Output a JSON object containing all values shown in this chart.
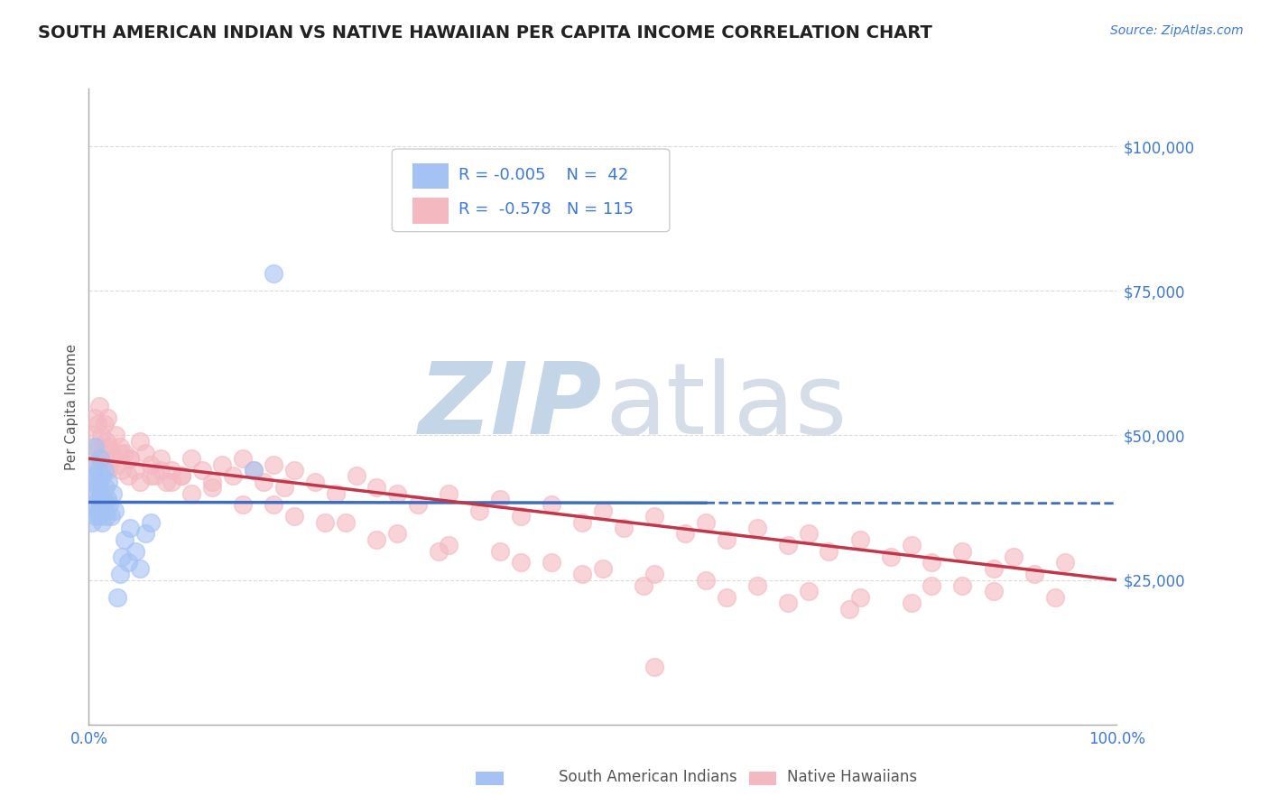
{
  "title": "SOUTH AMERICAN INDIAN VS NATIVE HAWAIIAN PER CAPITA INCOME CORRELATION CHART",
  "source_text": "Source: ZipAtlas.com",
  "ylabel": "Per Capita Income",
  "xlim": [
    0,
    1.0
  ],
  "ylim": [
    0,
    110000
  ],
  "xticks": [
    0.0,
    0.2,
    0.4,
    0.6,
    0.8,
    1.0
  ],
  "xtick_labels": [
    "0.0%",
    "",
    "",
    "",
    "",
    "100.0%"
  ],
  "yticks": [
    0,
    25000,
    50000,
    75000,
    100000
  ],
  "ytick_labels": [
    "",
    "$25,000",
    "$50,000",
    "$75,000",
    "$100,000"
  ],
  "legend_R1": "-0.005",
  "legend_N1": "42",
  "legend_R2": "-0.578",
  "legend_N2": "115",
  "color_blue": "#a4c2f4",
  "color_pink": "#f4b8c1",
  "trend_blue_color": "#3d6cc0",
  "trend_pink_color": "#c0364a",
  "background_color": "#ffffff",
  "grid_color": "#cccccc",
  "title_color": "#222222",
  "tick_color": "#3c78d8",
  "watermark_zip_color": "#c5d5e8",
  "watermark_atlas_color": "#d5dde8",
  "blue_scatter_x": [
    0.003,
    0.004,
    0.005,
    0.005,
    0.006,
    0.006,
    0.007,
    0.007,
    0.008,
    0.008,
    0.009,
    0.009,
    0.01,
    0.01,
    0.011,
    0.011,
    0.012,
    0.013,
    0.013,
    0.014,
    0.015,
    0.015,
    0.016,
    0.017,
    0.018,
    0.019,
    0.02,
    0.022,
    0.023,
    0.025,
    0.028,
    0.03,
    0.032,
    0.035,
    0.038,
    0.04,
    0.045,
    0.05,
    0.055,
    0.06,
    0.16,
    0.18
  ],
  "blue_scatter_y": [
    35000,
    42000,
    38000,
    45000,
    40000,
    48000,
    36000,
    43000,
    41000,
    37000,
    39000,
    44000,
    36000,
    42000,
    38000,
    46000,
    40000,
    35000,
    43000,
    39000,
    37000,
    44000,
    41000,
    36000,
    39000,
    42000,
    38000,
    36000,
    40000,
    37000,
    22000,
    26000,
    29000,
    32000,
    28000,
    34000,
    30000,
    27000,
    33000,
    35000,
    44000,
    78000
  ],
  "pink_scatter_x": [
    0.004,
    0.005,
    0.006,
    0.007,
    0.008,
    0.009,
    0.01,
    0.011,
    0.012,
    0.013,
    0.014,
    0.015,
    0.016,
    0.017,
    0.018,
    0.019,
    0.02,
    0.022,
    0.024,
    0.026,
    0.028,
    0.03,
    0.032,
    0.035,
    0.038,
    0.04,
    0.045,
    0.05,
    0.055,
    0.06,
    0.065,
    0.07,
    0.075,
    0.08,
    0.09,
    0.1,
    0.11,
    0.12,
    0.13,
    0.14,
    0.15,
    0.16,
    0.17,
    0.18,
    0.19,
    0.2,
    0.22,
    0.24,
    0.26,
    0.28,
    0.3,
    0.32,
    0.35,
    0.38,
    0.4,
    0.42,
    0.45,
    0.48,
    0.5,
    0.52,
    0.55,
    0.58,
    0.6,
    0.62,
    0.65,
    0.68,
    0.7,
    0.72,
    0.75,
    0.78,
    0.8,
    0.82,
    0.85,
    0.88,
    0.9,
    0.92,
    0.95,
    0.04,
    0.06,
    0.08,
    0.1,
    0.15,
    0.2,
    0.25,
    0.3,
    0.35,
    0.4,
    0.45,
    0.5,
    0.55,
    0.6,
    0.65,
    0.7,
    0.75,
    0.8,
    0.85,
    0.03,
    0.07,
    0.12,
    0.18,
    0.23,
    0.28,
    0.34,
    0.42,
    0.48,
    0.54,
    0.62,
    0.68,
    0.74,
    0.82,
    0.88,
    0.94,
    0.05,
    0.09,
    0.55
  ],
  "pink_scatter_y": [
    44000,
    50000,
    53000,
    47000,
    52000,
    48000,
    55000,
    46000,
    50000,
    45000,
    48000,
    52000,
    46000,
    49000,
    53000,
    44000,
    48000,
    47000,
    46000,
    50000,
    45000,
    48000,
    44000,
    47000,
    43000,
    46000,
    44000,
    42000,
    47000,
    45000,
    43000,
    46000,
    42000,
    44000,
    43000,
    46000,
    44000,
    42000,
    45000,
    43000,
    46000,
    44000,
    42000,
    45000,
    41000,
    44000,
    42000,
    40000,
    43000,
    41000,
    40000,
    38000,
    40000,
    37000,
    39000,
    36000,
    38000,
    35000,
    37000,
    34000,
    36000,
    33000,
    35000,
    32000,
    34000,
    31000,
    33000,
    30000,
    32000,
    29000,
    31000,
    28000,
    30000,
    27000,
    29000,
    26000,
    28000,
    46000,
    43000,
    42000,
    40000,
    38000,
    36000,
    35000,
    33000,
    31000,
    30000,
    28000,
    27000,
    26000,
    25000,
    24000,
    23000,
    22000,
    21000,
    24000,
    47000,
    44000,
    41000,
    38000,
    35000,
    32000,
    30000,
    28000,
    26000,
    24000,
    22000,
    21000,
    20000,
    24000,
    23000,
    22000,
    49000,
    43000,
    10000
  ]
}
